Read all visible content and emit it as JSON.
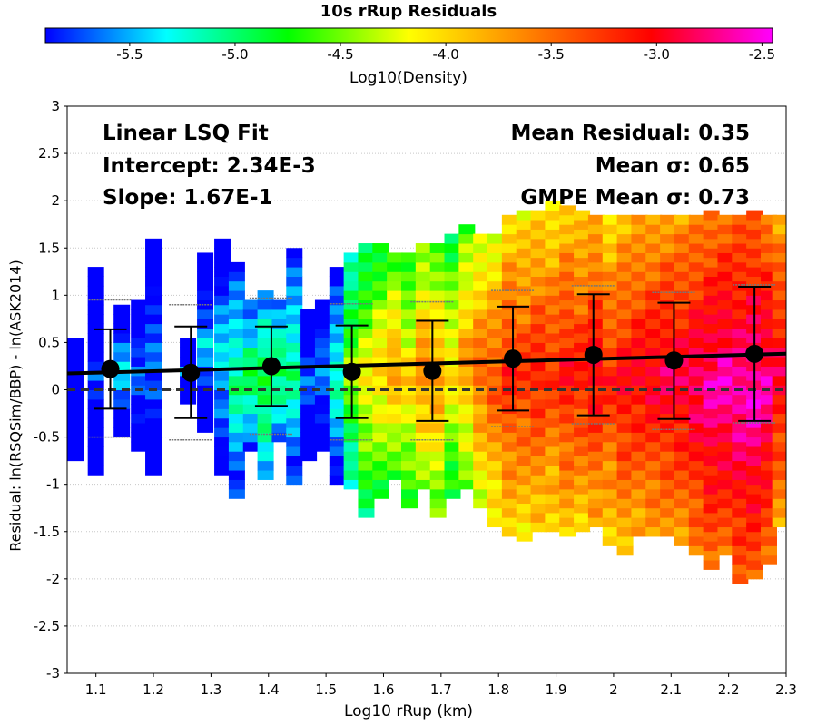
{
  "chart_data": {
    "type": "heatmap",
    "title": "10s rRup Residuals",
    "xlabel": "Log10 rRup (km)",
    "ylabel": "Residual: ln(RSQSim/BBP) - ln(ASK2014)",
    "xlim": [
      1.05,
      2.3
    ],
    "ylim": [
      -3,
      3
    ],
    "x_ticks": [
      "1.1",
      "1.2",
      "1.3",
      "1.4",
      "1.5",
      "1.6",
      "1.7",
      "1.8",
      "1.9",
      "2",
      "2.1",
      "2.2",
      "2.3"
    ],
    "y_ticks": [
      "-3",
      "-2.5",
      "-2",
      "-1.5",
      "-1",
      "-0.5",
      "0",
      "0.5",
      "1",
      "1.5",
      "2",
      "2.5",
      "3"
    ],
    "grid": true,
    "colorbar": {
      "label": "Log10(Density)",
      "range": [
        -5.9,
        -2.45
      ],
      "ticks": [
        "-5.5",
        "-5.0",
        "-4.5",
        "-4.0",
        "-3.5",
        "-3.0",
        "-2.5"
      ],
      "colormap": [
        "#0000ff",
        "#00ffff",
        "#00ff00",
        "#ffff00",
        "#ff8000",
        "#ff0000",
        "#ff00ff"
      ]
    },
    "annotations": {
      "fit_title": "Linear LSQ Fit",
      "intercept": "Intercept: 2.34E-3",
      "slope": "Slope: 1.67E-1",
      "mean_residual": "Mean Residual: 0.35",
      "mean_sigma": "Mean σ: 0.65",
      "gmpe_sigma": "GMPE Mean σ: 0.73"
    },
    "fit_line": {
      "intercept": 0.00234,
      "slope": 0.167
    },
    "zero_line": 0,
    "bins": [
      {
        "x": 1.125,
        "mean": 0.22,
        "lower": -0.2,
        "upper": 0.64,
        "gmpe_lower": -0.5,
        "gmpe_upper": 0.95
      },
      {
        "x": 1.265,
        "mean": 0.18,
        "lower": -0.3,
        "upper": 0.67,
        "gmpe_lower": -0.53,
        "gmpe_upper": 0.9
      },
      {
        "x": 1.405,
        "mean": 0.25,
        "lower": -0.17,
        "upper": 0.67,
        "gmpe_lower": -0.47,
        "gmpe_upper": 0.97
      },
      {
        "x": 1.545,
        "mean": 0.19,
        "lower": -0.3,
        "upper": 0.68,
        "gmpe_lower": -0.53,
        "gmpe_upper": 0.91
      },
      {
        "x": 1.685,
        "mean": 0.2,
        "lower": -0.33,
        "upper": 0.73,
        "gmpe_lower": -0.53,
        "gmpe_upper": 0.93
      },
      {
        "x": 1.825,
        "mean": 0.33,
        "lower": -0.22,
        "upper": 0.88,
        "gmpe_lower": -0.39,
        "gmpe_upper": 1.05
      },
      {
        "x": 1.965,
        "mean": 0.37,
        "lower": -0.27,
        "upper": 1.01,
        "gmpe_lower": -0.36,
        "gmpe_upper": 1.1
      },
      {
        "x": 2.105,
        "mean": 0.31,
        "lower": -0.31,
        "upper": 0.92,
        "gmpe_lower": -0.42,
        "gmpe_upper": 1.03
      },
      {
        "x": 2.245,
        "mean": 0.38,
        "lower": -0.33,
        "upper": 1.09,
        "gmpe_lower": -0.35,
        "gmpe_upper": 1.11
      }
    ],
    "density_columns": [
      {
        "x": 1.065,
        "y_min": -0.75,
        "y_max": 0.55,
        "density": -5.9
      },
      {
        "x": 1.1,
        "y_min": -0.9,
        "y_max": 1.25,
        "density": -5.75
      },
      {
        "x": 1.145,
        "y_min": -0.5,
        "y_max": 0.85,
        "density": -5.35
      },
      {
        "x": 1.175,
        "y_min": -0.65,
        "y_max": 0.9,
        "density": -5.55
      },
      {
        "x": 1.2,
        "y_min": -0.9,
        "y_max": 1.55,
        "density": -5.55
      },
      {
        "x": 1.26,
        "y_min": -0.15,
        "y_max": 0.55,
        "density": -5.65
      },
      {
        "x": 1.29,
        "y_min": -0.45,
        "y_max": 1.45,
        "density": -5.45
      },
      {
        "x": 1.32,
        "y_min": -0.9,
        "y_max": 1.55,
        "density": -5.3
      },
      {
        "x": 1.345,
        "y_min": -1.15,
        "y_max": 1.35,
        "density": -5.0
      },
      {
        "x": 1.37,
        "y_min": -0.65,
        "y_max": 0.95,
        "density": -4.85
      },
      {
        "x": 1.395,
        "y_min": -0.95,
        "y_max": 1.05,
        "density": -4.75
      },
      {
        "x": 1.42,
        "y_min": -0.55,
        "y_max": 0.95,
        "density": -4.85
      },
      {
        "x": 1.445,
        "y_min": -1.0,
        "y_max": 1.45,
        "density": -5.0
      },
      {
        "x": 1.47,
        "y_min": -0.75,
        "y_max": 0.85,
        "density": -5.6
      },
      {
        "x": 1.495,
        "y_min": -0.65,
        "y_max": 0.95,
        "density": -5.5
      },
      {
        "x": 1.52,
        "y_min": -1.0,
        "y_max": 1.25,
        "density": -5.1
      },
      {
        "x": 1.545,
        "y_min": -1.05,
        "y_max": 1.45,
        "density": -4.4
      },
      {
        "x": 1.57,
        "y_min": -1.35,
        "y_max": 1.5,
        "density": -4.1
      },
      {
        "x": 1.595,
        "y_min": -1.15,
        "y_max": 1.5,
        "density": -3.95
      },
      {
        "x": 1.62,
        "y_min": -0.95,
        "y_max": 1.45,
        "density": -3.75
      },
      {
        "x": 1.645,
        "y_min": -1.25,
        "y_max": 1.45,
        "density": -3.95
      },
      {
        "x": 1.67,
        "y_min": -1.05,
        "y_max": 1.5,
        "density": -3.6
      },
      {
        "x": 1.695,
        "y_min": -1.35,
        "y_max": 1.55,
        "density": -3.7
      },
      {
        "x": 1.72,
        "y_min": -1.15,
        "y_max": 1.65,
        "density": -4.0
      },
      {
        "x": 1.745,
        "y_min": -1.05,
        "y_max": 1.75,
        "density": -3.7
      },
      {
        "x": 1.77,
        "y_min": -1.25,
        "y_max": 1.65,
        "density": -3.45
      },
      {
        "x": 1.795,
        "y_min": -1.45,
        "y_max": 1.65,
        "density": -3.35
      },
      {
        "x": 1.82,
        "y_min": -1.55,
        "y_max": 1.85,
        "density": -3.15
      },
      {
        "x": 1.845,
        "y_min": -1.6,
        "y_max": 1.85,
        "density": -3.2
      },
      {
        "x": 1.87,
        "y_min": -1.5,
        "y_max": 1.85,
        "density": -3.1
      },
      {
        "x": 1.895,
        "y_min": -1.5,
        "y_max": 1.95,
        "density": -3.2
      },
      {
        "x": 1.92,
        "y_min": -1.55,
        "y_max": 1.95,
        "density": -3.05
      },
      {
        "x": 1.945,
        "y_min": -1.5,
        "y_max": 1.85,
        "density": -3.1
      },
      {
        "x": 1.97,
        "y_min": -1.45,
        "y_max": 1.85,
        "density": -2.95
      },
      {
        "x": 1.995,
        "y_min": -1.65,
        "y_max": 1.85,
        "density": -3.15
      },
      {
        "x": 2.02,
        "y_min": -1.75,
        "y_max": 1.85,
        "density": -3.0
      },
      {
        "x": 2.045,
        "y_min": -1.55,
        "y_max": 1.85,
        "density": -2.95
      },
      {
        "x": 2.07,
        "y_min": -1.55,
        "y_max": 1.85,
        "density": -2.9
      },
      {
        "x": 2.095,
        "y_min": -1.55,
        "y_max": 1.85,
        "density": -2.85
      },
      {
        "x": 2.12,
        "y_min": -1.65,
        "y_max": 1.85,
        "density": -2.85
      },
      {
        "x": 2.145,
        "y_min": -1.75,
        "y_max": 1.85,
        "density": -2.75
      },
      {
        "x": 2.17,
        "y_min": -1.9,
        "y_max": 1.85,
        "density": -2.65
      },
      {
        "x": 2.195,
        "y_min": -1.75,
        "y_max": 1.85,
        "density": -2.6
      },
      {
        "x": 2.22,
        "y_min": -2.05,
        "y_max": 1.85,
        "density": -2.6
      },
      {
        "x": 2.245,
        "y_min": -2.0,
        "y_max": 1.85,
        "density": -2.55
      },
      {
        "x": 2.27,
        "y_min": -1.85,
        "y_max": 1.85,
        "density": -2.65
      },
      {
        "x": 2.29,
        "y_min": -1.45,
        "y_max": 1.85,
        "density": -2.9
      }
    ]
  }
}
